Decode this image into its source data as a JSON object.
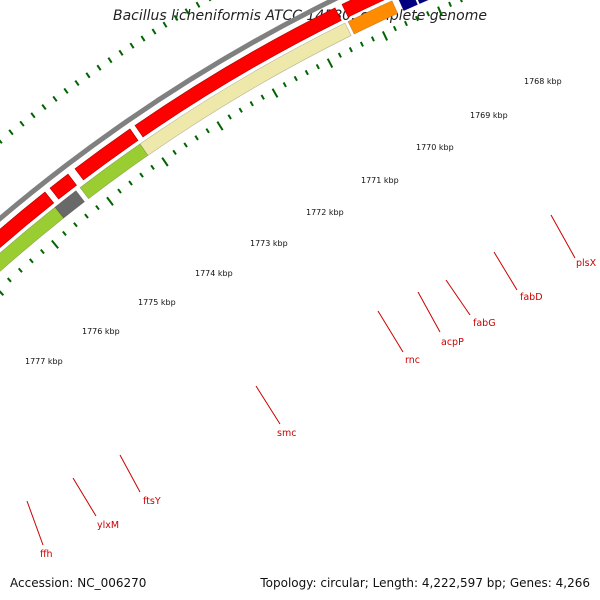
{
  "title": "Bacillus licheniformis ATCC 14580, complete genome",
  "accession": "Accession: NC_006270",
  "summary": "Topology: circular; Length: 4,222,597 bp; Genes: 4,266",
  "kbp_labels": [
    "1768 kbp",
    "1769 kbp",
    "1770 kbp",
    "1771 kbp",
    "1772 kbp",
    "1773 kbp",
    "1774 kbp",
    "1775 kbp",
    "1776 kbp",
    "1777 kbp"
  ],
  "gene_labels": [
    "plsX",
    "fabD",
    "fabG",
    "acpP",
    "rnc",
    "smc",
    "ftsY",
    "ylxM",
    "ffh"
  ],
  "colors": {
    "backbone": "#808080",
    "cds": "#ff0000",
    "plsX": "#7b68ee",
    "fabD": "#7b68ee",
    "fabG": "#000080",
    "acpP": "#000080",
    "rnc": "#ff8c00",
    "smc": "#eee8aa",
    "ftsY": "#9acd32",
    "ylxM": "#696969",
    "ffh": "#9acd32",
    "label": "#cc0000",
    "ticks": "#006400"
  }
}
